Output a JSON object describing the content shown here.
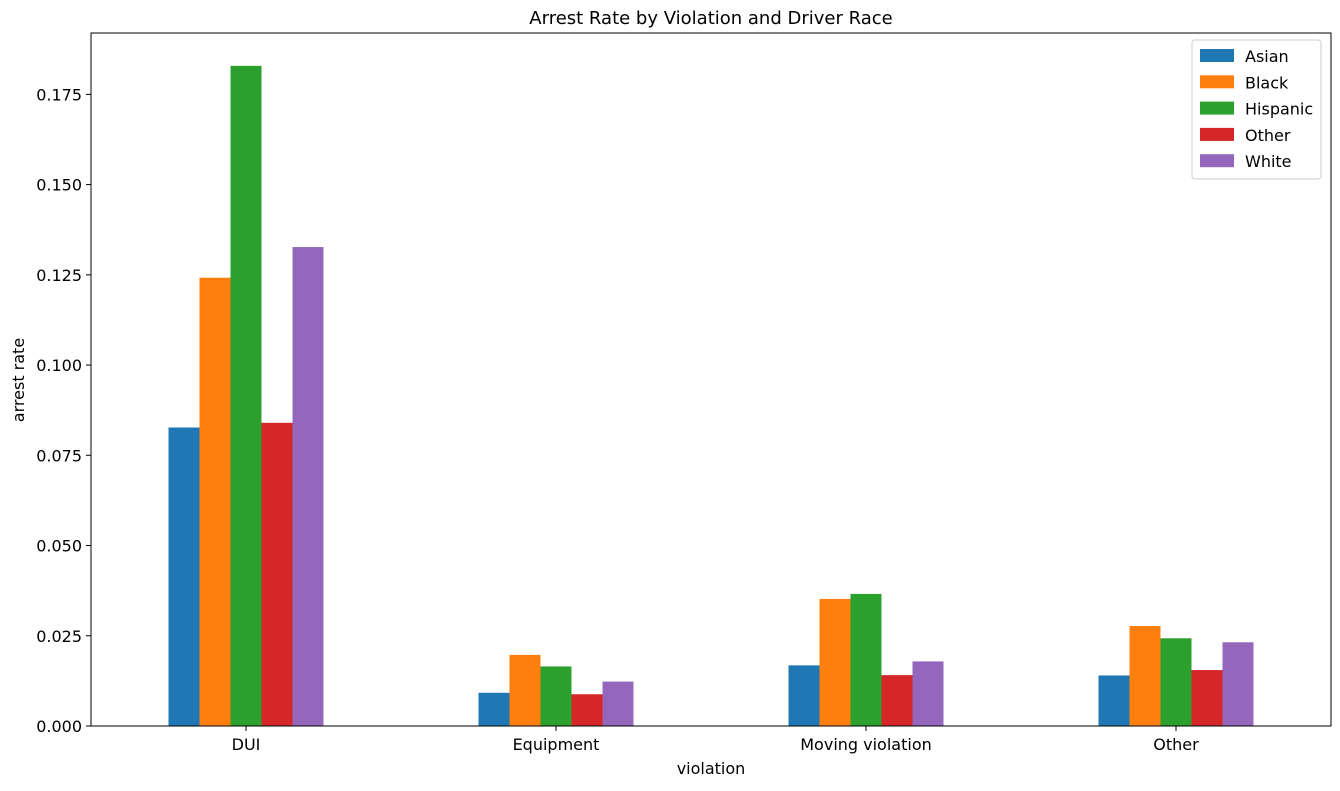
{
  "chart_data": {
    "type": "bar",
    "title": "Arrest Rate by Violation and Driver Race",
    "xlabel": "violation",
    "ylabel": "arrest rate",
    "categories": [
      "DUI",
      "Equipment",
      "Moving violation",
      "Other"
    ],
    "series": [
      {
        "name": "Asian",
        "color": "#1f77b4",
        "values": [
          0.0827,
          0.0092,
          0.0168,
          0.014
        ]
      },
      {
        "name": "Black",
        "color": "#ff7f0e",
        "values": [
          0.1242,
          0.0197,
          0.0352,
          0.0277
        ]
      },
      {
        "name": "Hispanic",
        "color": "#2ca02c",
        "values": [
          0.1829,
          0.0165,
          0.0366,
          0.0243
        ]
      },
      {
        "name": "Other",
        "color": "#d62728",
        "values": [
          0.084,
          0.0088,
          0.0141,
          0.0155
        ]
      },
      {
        "name": "White",
        "color": "#9467bd",
        "values": [
          0.1327,
          0.0123,
          0.0179,
          0.0232
        ]
      }
    ],
    "ylim": [
      0,
      0.192
    ],
    "yticks": [
      "0.000",
      "0.025",
      "0.050",
      "0.075",
      "0.100",
      "0.125",
      "0.150",
      "0.175"
    ],
    "grid": false,
    "legend_position": "top-right"
  }
}
